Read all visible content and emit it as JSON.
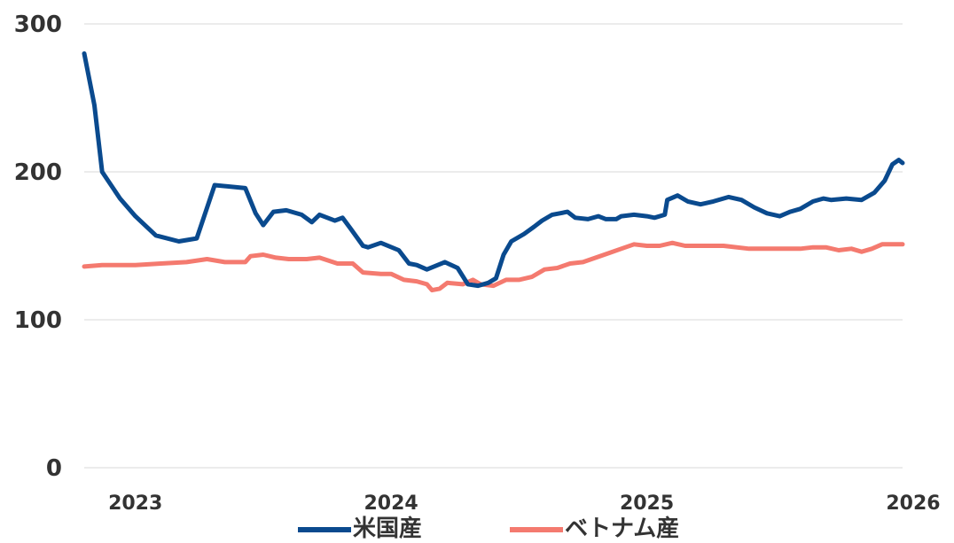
{
  "chart_data": {
    "type": "line",
    "title": "",
    "xlabel": "",
    "ylabel": "",
    "ylim": [
      0,
      300
    ],
    "yticks": [
      0,
      100,
      200,
      300
    ],
    "ytick_labels": [
      "0",
      "100",
      "200",
      "300"
    ],
    "xlim": [
      2022.8,
      2026.0
    ],
    "xticks": [
      2023,
      2024,
      2025,
      2026
    ],
    "xtick_labels": [
      "2023",
      "2024",
      "2025",
      "2026"
    ],
    "grid": "horizontal",
    "legend": "bottom",
    "series": [
      {
        "name": "米国産",
        "color": "#0a4a8e",
        "points": [
          [
            2022.8,
            280
          ],
          [
            2022.84,
            245
          ],
          [
            2022.87,
            200
          ],
          [
            2022.94,
            182
          ],
          [
            2023.0,
            170
          ],
          [
            2023.08,
            157
          ],
          [
            2023.17,
            153
          ],
          [
            2023.24,
            155
          ],
          [
            2023.31,
            191
          ],
          [
            2023.43,
            189
          ],
          [
            2023.47,
            172
          ],
          [
            2023.5,
            164
          ],
          [
            2023.54,
            173
          ],
          [
            2023.59,
            174
          ],
          [
            2023.65,
            171
          ],
          [
            2023.69,
            166
          ],
          [
            2023.72,
            171
          ],
          [
            2023.78,
            167
          ],
          [
            2023.81,
            169
          ],
          [
            2023.84,
            162
          ],
          [
            2023.89,
            150
          ],
          [
            2023.91,
            149
          ],
          [
            2023.96,
            152
          ],
          [
            2024.03,
            147
          ],
          [
            2024.07,
            138
          ],
          [
            2024.1,
            137
          ],
          [
            2024.14,
            134
          ],
          [
            2024.21,
            139
          ],
          [
            2024.26,
            135
          ],
          [
            2024.3,
            124
          ],
          [
            2024.34,
            123
          ],
          [
            2024.38,
            125
          ],
          [
            2024.41,
            128
          ],
          [
            2024.44,
            144
          ],
          [
            2024.47,
            153
          ],
          [
            2024.52,
            158
          ],
          [
            2024.56,
            163
          ],
          [
            2024.59,
            167
          ],
          [
            2024.63,
            171
          ],
          [
            2024.66,
            172
          ],
          [
            2024.69,
            173
          ],
          [
            2024.72,
            169
          ],
          [
            2024.77,
            168
          ],
          [
            2024.81,
            170
          ],
          [
            2024.84,
            168
          ],
          [
            2024.88,
            168
          ],
          [
            2024.9,
            170
          ],
          [
            2024.95,
            171
          ],
          [
            2025.0,
            170
          ],
          [
            2025.03,
            169
          ],
          [
            2025.07,
            171
          ],
          [
            2025.08,
            181
          ],
          [
            2025.12,
            184
          ],
          [
            2025.16,
            180
          ],
          [
            2025.21,
            178
          ],
          [
            2025.26,
            180
          ],
          [
            2025.32,
            183
          ],
          [
            2025.37,
            181
          ],
          [
            2025.42,
            176
          ],
          [
            2025.47,
            172
          ],
          [
            2025.52,
            170
          ],
          [
            2025.56,
            173
          ],
          [
            2025.6,
            175
          ],
          [
            2025.65,
            180
          ],
          [
            2025.69,
            182
          ],
          [
            2025.72,
            181
          ],
          [
            2025.78,
            182
          ],
          [
            2025.84,
            181
          ],
          [
            2025.89,
            186
          ],
          [
            2025.93,
            194
          ],
          [
            2025.96,
            205
          ],
          [
            2025.985,
            208
          ],
          [
            2026.0,
            206
          ]
        ]
      },
      {
        "name": "ベトナム産",
        "color": "#f47a6f",
        "points": [
          [
            2022.8,
            136
          ],
          [
            2022.87,
            137
          ],
          [
            2023.0,
            137
          ],
          [
            2023.1,
            138
          ],
          [
            2023.2,
            139
          ],
          [
            2023.28,
            141
          ],
          [
            2023.35,
            139
          ],
          [
            2023.43,
            139
          ],
          [
            2023.45,
            143
          ],
          [
            2023.5,
            144
          ],
          [
            2023.55,
            142
          ],
          [
            2023.6,
            141
          ],
          [
            2023.67,
            141
          ],
          [
            2023.72,
            142
          ],
          [
            2023.79,
            138
          ],
          [
            2023.85,
            138
          ],
          [
            2023.89,
            132
          ],
          [
            2023.96,
            131
          ],
          [
            2024.0,
            131
          ],
          [
            2024.05,
            127
          ],
          [
            2024.1,
            126
          ],
          [
            2024.14,
            124
          ],
          [
            2024.16,
            120
          ],
          [
            2024.19,
            121
          ],
          [
            2024.22,
            125
          ],
          [
            2024.28,
            124
          ],
          [
            2024.32,
            127
          ],
          [
            2024.35,
            124
          ],
          [
            2024.4,
            123
          ],
          [
            2024.45,
            127
          ],
          [
            2024.5,
            127
          ],
          [
            2024.55,
            129
          ],
          [
            2024.6,
            134
          ],
          [
            2024.65,
            135
          ],
          [
            2024.7,
            138
          ],
          [
            2024.75,
            139
          ],
          [
            2024.8,
            142
          ],
          [
            2024.85,
            145
          ],
          [
            2024.9,
            148
          ],
          [
            2024.95,
            151
          ],
          [
            2025.0,
            150
          ],
          [
            2025.05,
            150
          ],
          [
            2025.1,
            152
          ],
          [
            2025.15,
            150
          ],
          [
            2025.2,
            150
          ],
          [
            2025.3,
            150
          ],
          [
            2025.4,
            148
          ],
          [
            2025.5,
            148
          ],
          [
            2025.6,
            148
          ],
          [
            2025.65,
            149
          ],
          [
            2025.7,
            149
          ],
          [
            2025.75,
            147
          ],
          [
            2025.8,
            148
          ],
          [
            2025.84,
            146
          ],
          [
            2025.88,
            148
          ],
          [
            2025.92,
            151
          ],
          [
            2025.96,
            151
          ],
          [
            2026.0,
            151
          ]
        ]
      }
    ]
  }
}
